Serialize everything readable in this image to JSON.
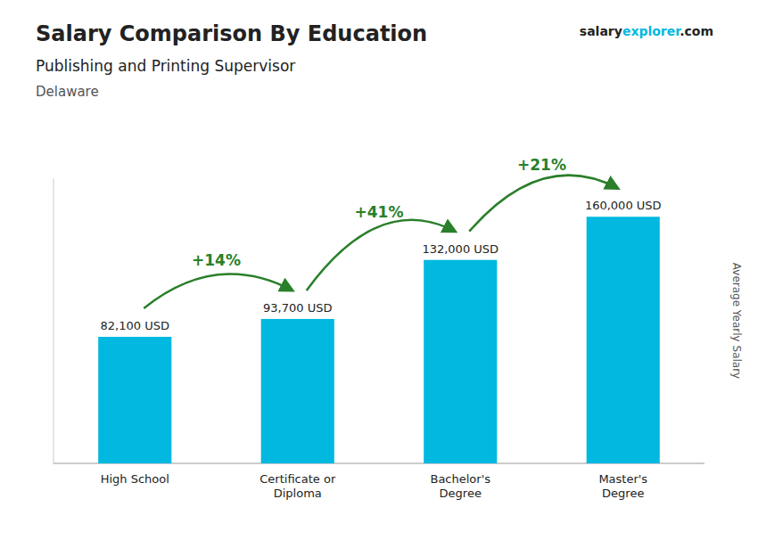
{
  "chart_data": {
    "type": "bar",
    "title": "Salary Comparison By Education",
    "subtitle": "Publishing and Printing Supervisor",
    "location": "Delaware",
    "brand": [
      "salary",
      "explorer",
      ".com"
    ],
    "ylabel": "Average Yearly Salary",
    "categories": [
      "High School",
      "Certificate or\nDiploma",
      "Bachelor's\nDegree",
      "Master's\nDegree"
    ],
    "values": [
      82100,
      93700,
      132000,
      160000
    ],
    "value_labels": [
      "82,100 USD",
      "93,700 USD",
      "132,000 USD",
      "160,000 USD"
    ],
    "annotations": [
      "+14%",
      "+41%",
      "+21%"
    ],
    "color": "#00b8e0",
    "ylim": [
      0,
      185000
    ],
    "grid": false,
    "data_labels": true,
    "tick_labels": "x"
  }
}
